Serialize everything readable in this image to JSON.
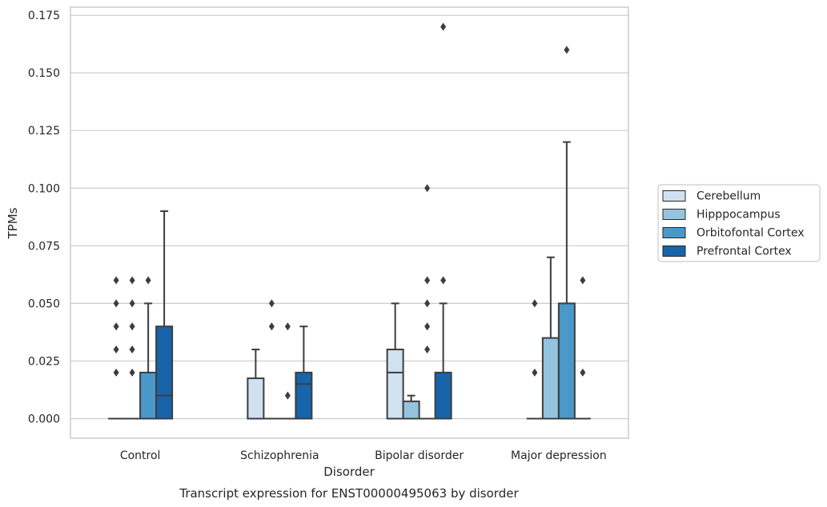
{
  "chart_data": {
    "type": "box",
    "caption": "Transcript expression for ENST00000495063 by disorder",
    "xlabel": "Disorder",
    "ylabel": "TPMs",
    "ylim": [
      -0.0085,
      0.1785
    ],
    "yticks": [
      "0.000",
      "0.025",
      "0.050",
      "0.075",
      "0.100",
      "0.125",
      "0.150",
      "0.175"
    ],
    "ytick_values": [
      0,
      0.025,
      0.05,
      0.075,
      0.1,
      0.125,
      0.15,
      0.175
    ],
    "grid": true,
    "legend_position": "right",
    "categories": [
      "Control",
      "Schizophrenia",
      "Bipolar disorder",
      "Major depression"
    ],
    "series": [
      {
        "name": "Cerebellum",
        "color": "#d0e1f2",
        "boxes": [
          {
            "q1": 0,
            "median": 0,
            "q3": 0,
            "whisker_low": 0,
            "whisker_high": 0,
            "outliers": [
              0.02,
              0.03,
              0.04,
              0.05,
              0.06
            ]
          },
          {
            "q1": 0,
            "median": 0,
            "q3": 0.0175,
            "whisker_low": 0,
            "whisker_high": 0.03,
            "outliers": []
          },
          {
            "q1": 0,
            "median": 0.02,
            "q3": 0.03,
            "whisker_low": 0,
            "whisker_high": 0.05,
            "outliers": []
          },
          {
            "q1": 0,
            "median": 0,
            "q3": 0,
            "whisker_low": 0,
            "whisker_high": 0,
            "outliers": [
              0.02,
              0.05
            ]
          }
        ]
      },
      {
        "name": "Hipppocampus",
        "color": "#94c4df",
        "boxes": [
          {
            "q1": 0,
            "median": 0,
            "q3": 0,
            "whisker_low": 0,
            "whisker_high": 0,
            "outliers": [
              0.02,
              0.03,
              0.04,
              0.05,
              0.06
            ]
          },
          {
            "q1": 0,
            "median": 0,
            "q3": 0,
            "whisker_low": 0,
            "whisker_high": 0,
            "outliers": [
              0.04,
              0.05
            ]
          },
          {
            "q1": 0,
            "median": 0,
            "q3": 0.0075,
            "whisker_low": 0,
            "whisker_high": 0.01,
            "outliers": []
          },
          {
            "q1": 0,
            "median": 0,
            "q3": 0.035,
            "whisker_low": 0,
            "whisker_high": 0.07,
            "outliers": []
          }
        ]
      },
      {
        "name": "Orbitofontal Cortex",
        "color": "#4a98c9",
        "boxes": [
          {
            "q1": 0,
            "median": 0,
            "q3": 0.02,
            "whisker_low": 0,
            "whisker_high": 0.05,
            "outliers": [
              0.06
            ]
          },
          {
            "q1": 0,
            "median": 0,
            "q3": 0,
            "whisker_low": 0,
            "whisker_high": 0,
            "outliers": [
              0.01,
              0.04
            ]
          },
          {
            "q1": 0,
            "median": 0,
            "q3": 0,
            "whisker_low": 0,
            "whisker_high": 0,
            "outliers": [
              0.03,
              0.04,
              0.05,
              0.06,
              0.1
            ]
          },
          {
            "q1": 0,
            "median": 0,
            "q3": 0.05,
            "whisker_low": 0,
            "whisker_high": 0.12,
            "outliers": [
              0.16
            ]
          }
        ]
      },
      {
        "name": "Prefrontal Cortex",
        "color": "#1764ab",
        "boxes": [
          {
            "q1": 0,
            "median": 0.01,
            "q3": 0.04,
            "whisker_low": 0,
            "whisker_high": 0.09,
            "outliers": []
          },
          {
            "q1": 0,
            "median": 0.015,
            "q3": 0.02,
            "whisker_low": 0,
            "whisker_high": 0.04,
            "outliers": []
          },
          {
            "q1": 0,
            "median": 0,
            "q3": 0.02,
            "whisker_low": 0,
            "whisker_high": 0.05,
            "outliers": [
              0.06,
              0.17
            ]
          },
          {
            "q1": 0,
            "median": 0,
            "q3": 0,
            "whisker_low": 0,
            "whisker_high": 0,
            "outliers": [
              0.02,
              0.06
            ]
          }
        ]
      }
    ]
  }
}
